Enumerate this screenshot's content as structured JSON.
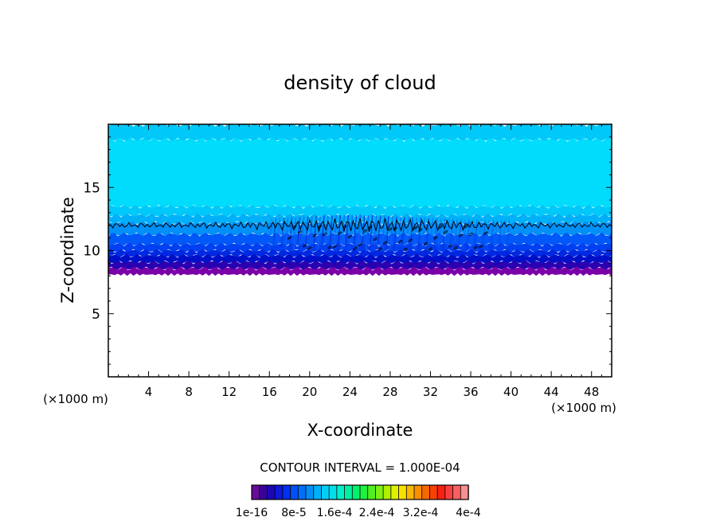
{
  "chart_data": {
    "type": "heatmap",
    "title": "density of cloud",
    "xlabel": "X-coordinate",
    "ylabel": "Z-coordinate",
    "x_unit_label": "(×1000 m)",
    "x_unit_label_right": "(×1000 m)",
    "xlim": [
      0,
      50
    ],
    "ylim": [
      0,
      20
    ],
    "x_ticks": [
      4,
      8,
      12,
      16,
      20,
      24,
      28,
      32,
      36,
      40,
      44,
      48
    ],
    "y_ticks": [
      5,
      10,
      15
    ],
    "contour_interval_label": "CONTOUR INTERVAL = 1.000E-04",
    "colorbar": {
      "colors": [
        "#6a0a9a",
        "#3a009a",
        "#1a08b8",
        "#0d18d8",
        "#0030f0",
        "#0050f8",
        "#0070f8",
        "#0090f8",
        "#00b0f8",
        "#00d0f8",
        "#00e0e8",
        "#00f0c8",
        "#00f0a0",
        "#00f070",
        "#20f040",
        "#50f020",
        "#80f010",
        "#b0f000",
        "#e0f000",
        "#f8e000",
        "#f8b800",
        "#f89000",
        "#f86800",
        "#f84000",
        "#f82010",
        "#f84040",
        "#f86060",
        "#f89090"
      ],
      "tick_labels": [
        "1e-16",
        "8e-5",
        "1.6e-4",
        "2.4e-4",
        "3.2e-4",
        "4e-4"
      ]
    },
    "cloud_layers": [
      {
        "z_bottom": 8.1,
        "z_top": 8.6,
        "value_level": 0
      },
      {
        "z_bottom": 8.6,
        "z_top": 9.1,
        "value_level": 1
      },
      {
        "z_bottom": 9.1,
        "z_top": 9.6,
        "value_level": 2
      },
      {
        "z_bottom": 9.6,
        "z_top": 10.0,
        "value_level": 3
      },
      {
        "z_bottom": 10.0,
        "z_top": 10.5,
        "value_level": 4
      },
      {
        "z_bottom": 10.5,
        "z_top": 11.3,
        "value_level": 5
      },
      {
        "z_bottom": 11.3,
        "z_top": 12.2,
        "value_level": 6
      },
      {
        "z_bottom": 12.2,
        "z_top": 12.8,
        "value_level": 7
      },
      {
        "z_bottom": 12.8,
        "z_top": 13.5,
        "value_level": 8
      },
      {
        "z_bottom": 13.5,
        "z_top": 18.8,
        "value_level": 9
      },
      {
        "z_bottom": 18.8,
        "z_top": 20.0,
        "value_level": 8
      }
    ],
    "contour_level_z": 12.0,
    "grid": false,
    "legend": "bottom-center colorbar"
  }
}
